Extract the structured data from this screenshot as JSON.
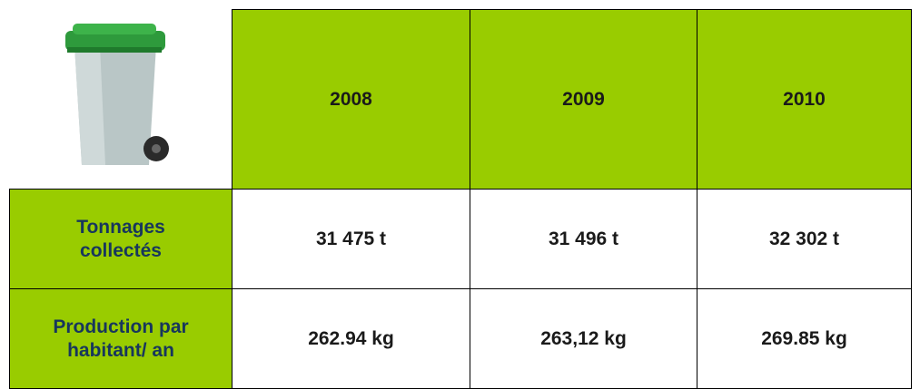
{
  "table": {
    "header": [
      "2008",
      "2009",
      "2010"
    ],
    "rows": [
      {
        "label": "Tonnages collectés",
        "cells": [
          "31 475 t",
          "31 496 t",
          "32 302 t"
        ]
      },
      {
        "label": "Production par habitant/ an",
        "cells": [
          "262.94 kg",
          "263,12 kg",
          "269.85 kg"
        ]
      }
    ]
  }
}
